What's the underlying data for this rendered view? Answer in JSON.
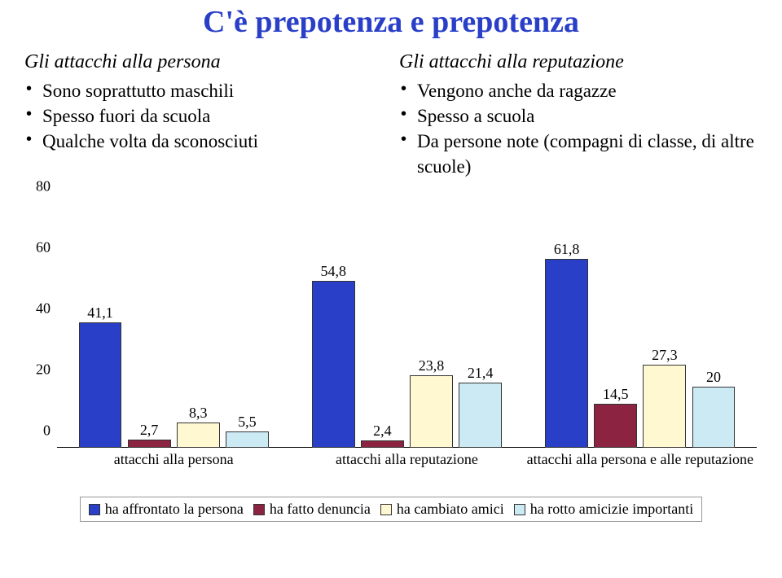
{
  "title": {
    "text": "C'è prepotenza e prepotenza",
    "color": "#2a3fc8"
  },
  "left_col": {
    "heading": "Gli attacchi alla persona",
    "items": [
      "Sono soprattutto maschili",
      "Spesso fuori da scuola",
      "Qualche volta da sconosciuti"
    ]
  },
  "right_col": {
    "heading": "Gli attacchi alla reputazione",
    "items": [
      "Vengono anche da ragazze",
      "Spesso a scuola",
      "Da persone note (compagni di classe, di altre scuole)"
    ]
  },
  "chart": {
    "type": "bar",
    "ylim": [
      0,
      80
    ],
    "ytick_step": 20,
    "yticks": [
      0,
      20,
      40,
      60,
      80
    ],
    "background_color": "#ffffff",
    "axis_color": "#000000",
    "label_fontsize": 18,
    "bar_border": "#333333",
    "categories": [
      "attacchi alla persona",
      "attacchi alla reputazione",
      "attacchi alla persona e alle reputazione"
    ],
    "series": [
      {
        "name": "ha affrontato la persona",
        "color": "#2a3fc8",
        "values": [
          41.1,
          54.8,
          61.8
        ]
      },
      {
        "name": "ha fatto denuncia",
        "color": "#8c2340",
        "values": [
          2.7,
          2.4,
          14.5
        ]
      },
      {
        "name": "ha cambiato amici",
        "color": "#fff8d0",
        "values": [
          8.3,
          23.8,
          27.3
        ]
      },
      {
        "name": "ha rotto amicizie importanti",
        "color": "#cceaf4",
        "values": [
          5.5,
          21.4,
          20.0
        ]
      }
    ],
    "value_labels": {
      "0": [
        "41,1",
        "2,7",
        "8,3",
        "5,5"
      ],
      "1": [
        "54,8",
        "2,4",
        "23,8",
        "21,4"
      ],
      "2": [
        "61,8",
        "14,5",
        "27,3",
        "20"
      ]
    }
  }
}
